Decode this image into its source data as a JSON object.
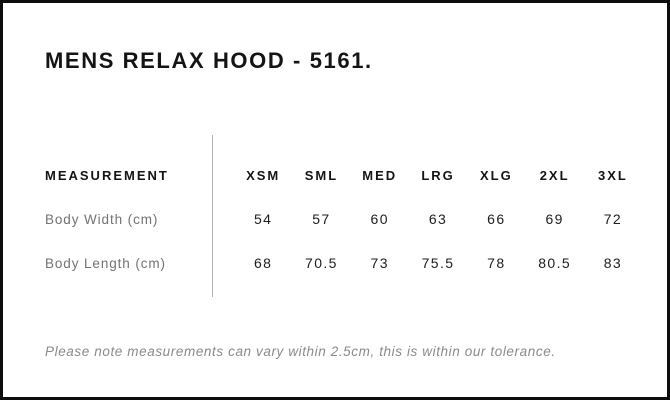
{
  "page": {
    "title": "MENS RELAX HOOD - 5161."
  },
  "table": {
    "measurement_header": "MEASUREMENT",
    "size_headers": [
      "XSM",
      "SML",
      "MED",
      "LRG",
      "XLG",
      "2XL",
      "3XL"
    ],
    "rows": [
      {
        "label": "Body Width (cm)",
        "values": [
          "54",
          "57",
          "60",
          "63",
          "66",
          "69",
          "72"
        ]
      },
      {
        "label": "Body Length (cm)",
        "values": [
          "68",
          "70.5",
          "73",
          "75.5",
          "78",
          "80.5",
          "83"
        ]
      }
    ]
  },
  "note": "Please note measurements can vary within 2.5cm, this is within our tolerance.",
  "colors": {
    "border": "#0d0d0d",
    "title": "#141414",
    "number": "#1d1d1d",
    "label": "#737373",
    "note": "#8a8a8a",
    "divider": "#b5b5b5",
    "bg": "#ffffff"
  }
}
